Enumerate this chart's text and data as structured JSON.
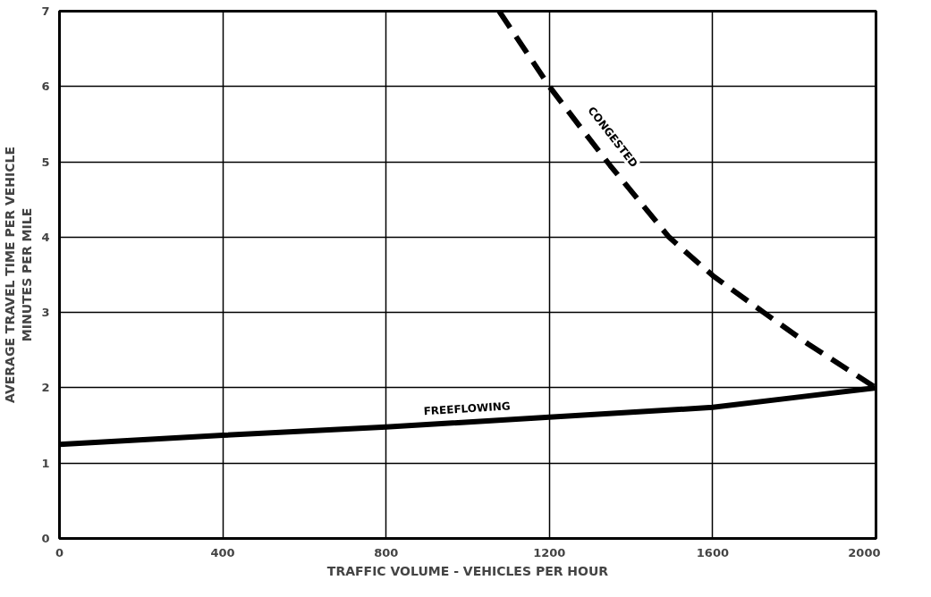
{
  "chart_data": {
    "type": "line",
    "xlabel": "TRAFFIC VOLUME - VEHICLES PER HOUR",
    "ylabel": "AVERAGE TRAVEL TIME PER VEHICLE\nMINUTES PER MILE",
    "xlim": [
      0,
      2000
    ],
    "ylim": [
      0,
      7
    ],
    "xticks": [
      0,
      400,
      800,
      1200,
      1600,
      2000
    ],
    "yticks": [
      0,
      1,
      2,
      3,
      4,
      5,
      6,
      7
    ],
    "grid": true,
    "legend": false,
    "series": [
      {
        "name": "FREEFLOWING",
        "color": "#000000",
        "line_style": "solid",
        "x": [
          0,
          400,
          800,
          1200,
          1600,
          1800,
          2000
        ],
        "values": [
          1.25,
          1.37,
          1.48,
          1.61,
          1.74,
          1.87,
          2.0
        ]
      },
      {
        "name": "CONGESTED",
        "color": "#000000",
        "line_style": "dashed",
        "x": [
          1077,
          1200,
          1276,
          1349,
          1493,
          1600,
          1725,
          1834,
          2000
        ],
        "values": [
          7,
          6,
          5.46,
          4.95,
          4,
          3.49,
          3,
          2.58,
          2
        ]
      }
    ]
  }
}
